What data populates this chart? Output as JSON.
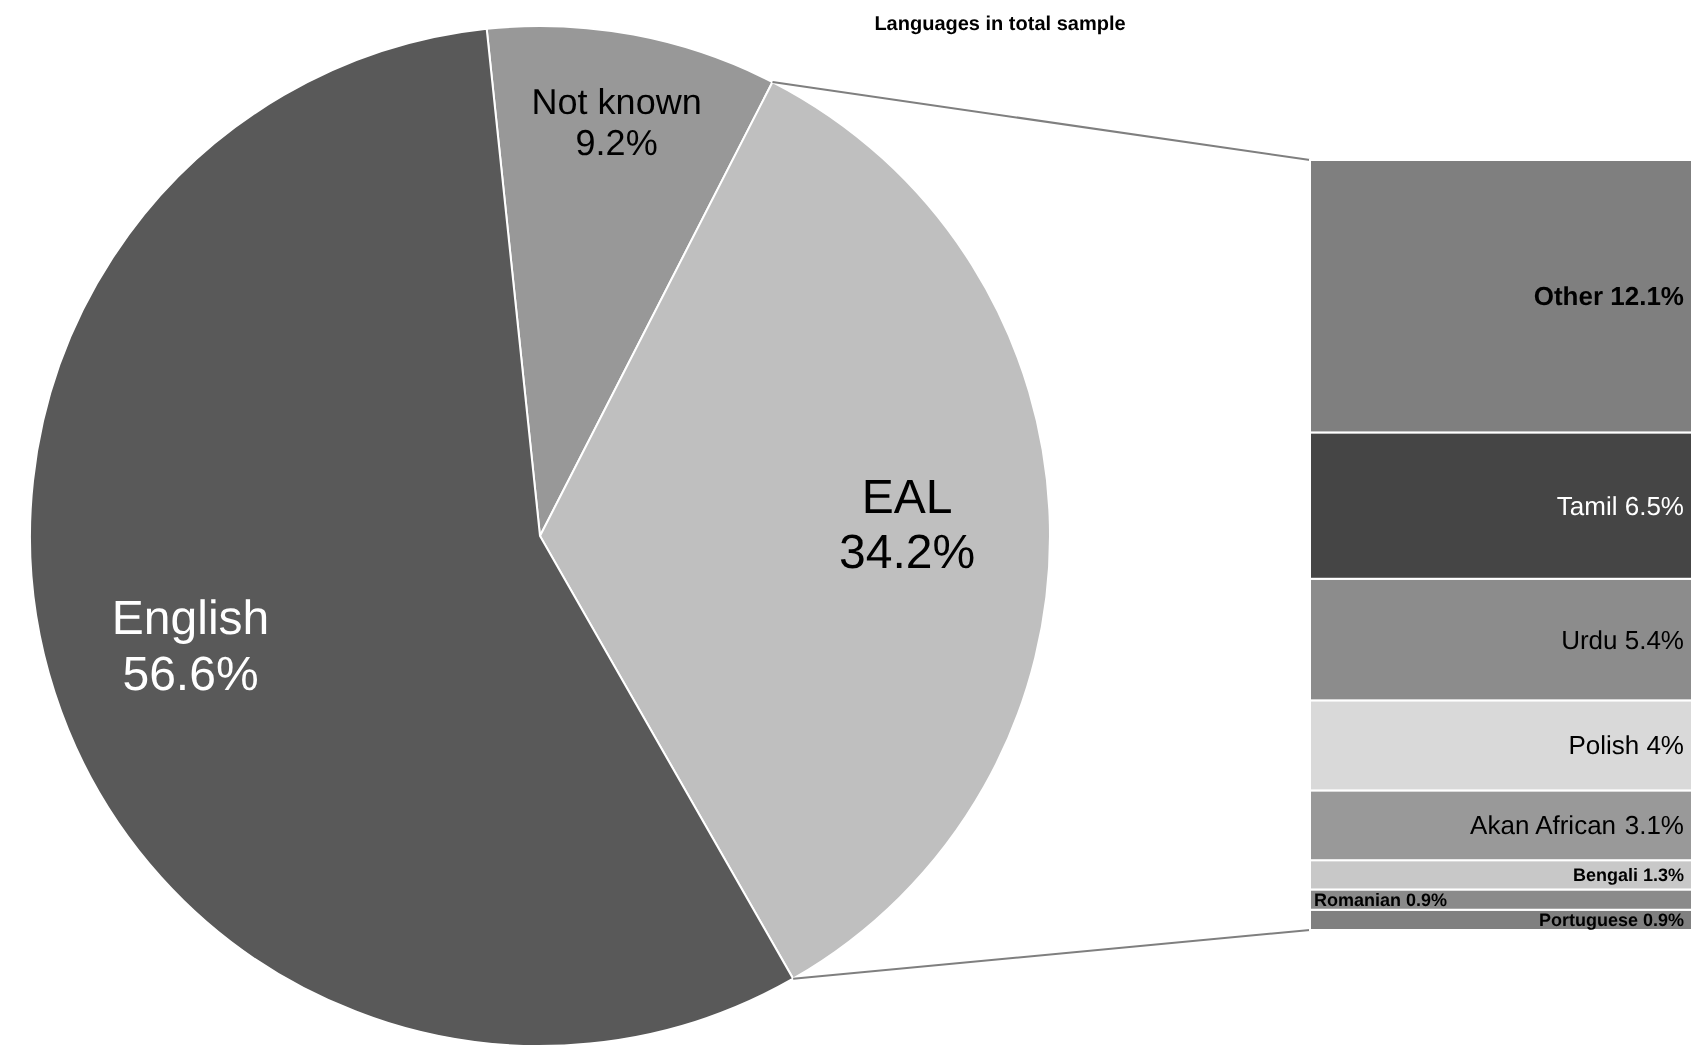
{
  "chart_data": [
    {
      "type": "pie",
      "title": "Languages in total sample",
      "categories": [
        "Not known",
        "EAL",
        "English"
      ],
      "values": [
        9.2,
        34.2,
        56.6
      ],
      "colors": [
        "#989898",
        "#bfbfbf",
        "#595959"
      ],
      "value_labels": [
        "9.2%",
        "34.2%",
        "56.6%"
      ]
    },
    {
      "type": "bar",
      "stacked": true,
      "categories": [
        null
      ],
      "series": [
        {
          "name": "Portuguese",
          "color": "#808080",
          "values": [
            0.9
          ],
          "value_labels": [
            "0.9%"
          ]
        },
        {
          "name": "Romanian",
          "color": "#8a8a8a",
          "values": [
            0.9
          ],
          "value_labels": [
            "0.9%"
          ]
        },
        {
          "name": "Bengali",
          "color": "#c8c8c8",
          "values": [
            1.3
          ],
          "value_labels": [
            "1.3%"
          ]
        },
        {
          "name": "Akan African",
          "color": "#999999",
          "values": [
            3.1
          ],
          "value_labels": [
            "3.1%"
          ]
        },
        {
          "name": "Polish",
          "color": "#d9d9d9",
          "values": [
            4
          ],
          "value_labels": [
            "4%"
          ]
        },
        {
          "name": "Urdu",
          "color": "#8c8c8c",
          "values": [
            5.4
          ],
          "value_labels": [
            "5.4%"
          ]
        },
        {
          "name": "Tamil",
          "color": "#454545",
          "values": [
            6.5
          ],
          "value_labels": [
            "6.5%"
          ]
        },
        {
          "name": "Other",
          "color": "#7f7f7f",
          "values": [
            12.1
          ],
          "value_labels": [
            "12.1%"
          ]
        }
      ]
    }
  ]
}
